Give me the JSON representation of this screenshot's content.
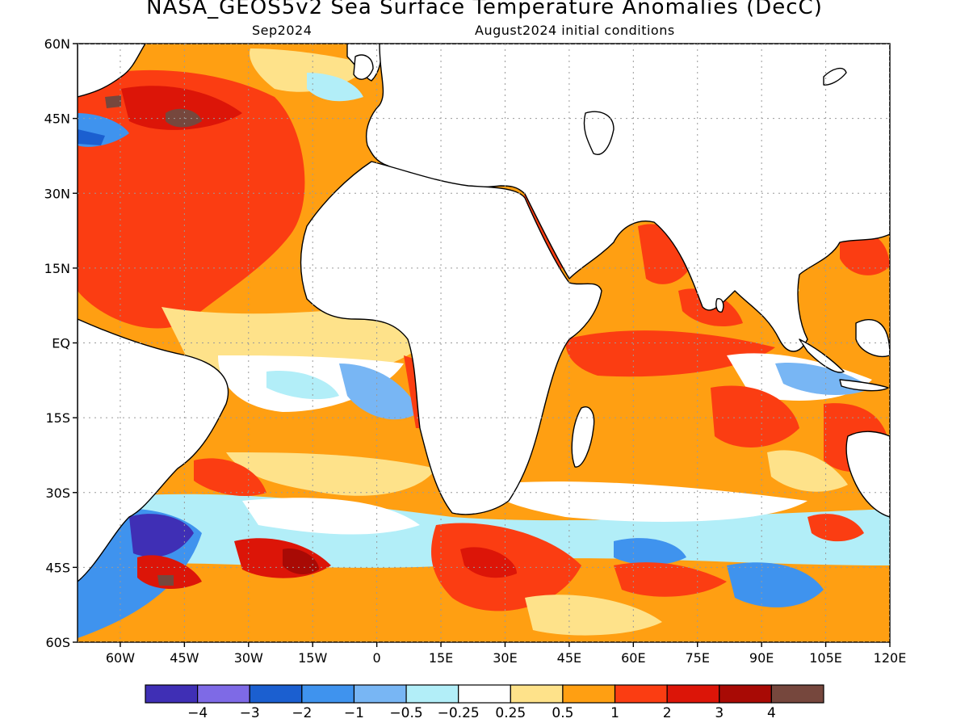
{
  "title": "NASA_GEOS5v2 Sea Surface Temperature Anomalies (DecC)",
  "subtitle_left": "Sep2024",
  "subtitle_right": "August2024 initial conditions",
  "map": {
    "lon_range": [
      -70,
      120
    ],
    "lat_range": [
      -60,
      60
    ],
    "lat_ticks": [
      {
        "value": 60,
        "label": "60N"
      },
      {
        "value": 45,
        "label": "45N"
      },
      {
        "value": 30,
        "label": "30N"
      },
      {
        "value": 15,
        "label": "15N"
      },
      {
        "value": 0,
        "label": "EQ"
      },
      {
        "value": -15,
        "label": "15S"
      },
      {
        "value": -30,
        "label": "30S"
      },
      {
        "value": -45,
        "label": "45S"
      },
      {
        "value": -60,
        "label": "60S"
      }
    ],
    "lon_ticks": [
      {
        "value": -60,
        "label": "60W"
      },
      {
        "value": -45,
        "label": "45W"
      },
      {
        "value": -30,
        "label": "30W"
      },
      {
        "value": -15,
        "label": "15W"
      },
      {
        "value": 0,
        "label": "0"
      },
      {
        "value": 15,
        "label": "15E"
      },
      {
        "value": 30,
        "label": "30E"
      },
      {
        "value": 45,
        "label": "45E"
      },
      {
        "value": 60,
        "label": "60E"
      },
      {
        "value": 75,
        "label": "75E"
      },
      {
        "value": 90,
        "label": "90E"
      },
      {
        "value": 105,
        "label": "105E"
      },
      {
        "value": 120,
        "label": "120E"
      }
    ],
    "grid": true
  },
  "colorbar": {
    "colors": [
      "#3f2fb5",
      "#7e6ae6",
      "#1b5fd0",
      "#3f93ee",
      "#78b6f4",
      "#b2eef8",
      "#ffffff",
      "#fee28a",
      "#ff9f12",
      "#fb3d12",
      "#dc1508",
      "#a80a05",
      "#76473d"
    ],
    "labels": [
      "−4",
      "−3",
      "−2",
      "−1",
      "−0.5",
      "−0.25",
      "0.25",
      "0.5",
      "1",
      "2",
      "3",
      "4"
    ]
  }
}
